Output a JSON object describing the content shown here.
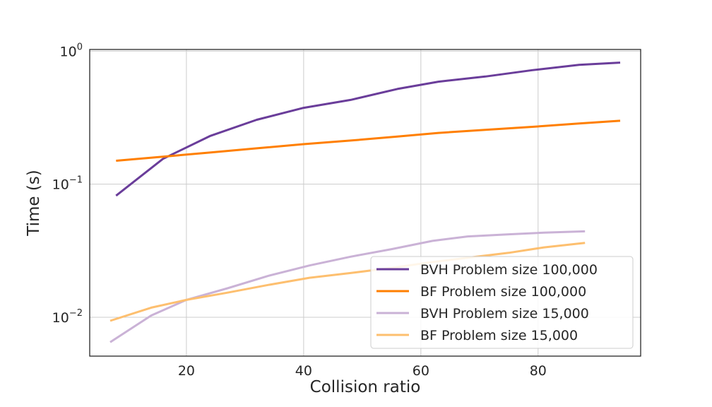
{
  "chart_data": {
    "type": "line",
    "xlabel": "Collision ratio",
    "ylabel": "Time (s)",
    "xlim": [
      3.5,
      97.5
    ],
    "ylim": [
      0.0051,
      1.03
    ],
    "yscale": "log",
    "grid": true,
    "legend_position": "lower-right",
    "x_ticks": [
      20,
      40,
      60,
      80
    ],
    "y_ticks": [
      {
        "value": 1,
        "base": "10",
        "exp": "0"
      },
      {
        "value": 0.1,
        "base": "10",
        "exp": "−1"
      },
      {
        "value": 0.01,
        "base": "10",
        "exp": "−2"
      }
    ],
    "series": [
      {
        "name": "BVH Problem size 100,000",
        "color": "#6a3d9a",
        "x": [
          8,
          16,
          24,
          32,
          40,
          48,
          56,
          63,
          71,
          79,
          87,
          94
        ],
        "y": [
          0.082,
          0.155,
          0.23,
          0.305,
          0.375,
          0.43,
          0.52,
          0.59,
          0.645,
          0.72,
          0.79,
          0.82
        ]
      },
      {
        "name": "BF Problem size 100,000",
        "color": "#ff7f00",
        "x": [
          8,
          16,
          24,
          32,
          40,
          48,
          56,
          63,
          71,
          79,
          87,
          94
        ],
        "y": [
          0.15,
          0.161,
          0.173,
          0.186,
          0.2,
          0.213,
          0.228,
          0.243,
          0.256,
          0.27,
          0.286,
          0.3
        ]
      },
      {
        "name": "BVH Problem size 15,000",
        "color": "#cab2d6",
        "x": [
          7,
          14,
          20,
          27,
          34,
          41,
          48,
          55,
          62,
          68,
          75,
          81,
          88
        ],
        "y": [
          0.0065,
          0.0103,
          0.0135,
          0.0165,
          0.0205,
          0.0245,
          0.0285,
          0.0325,
          0.0375,
          0.0405,
          0.042,
          0.0432,
          0.0442
        ]
      },
      {
        "name": "BF Problem size 15,000",
        "color": "#fdbf6f",
        "x": [
          7,
          14,
          20,
          27,
          34,
          41,
          48,
          55,
          62,
          68,
          75,
          81,
          88
        ],
        "y": [
          0.0094,
          0.0118,
          0.0135,
          0.0153,
          0.0175,
          0.0198,
          0.0215,
          0.0235,
          0.026,
          0.028,
          0.0305,
          0.0335,
          0.0362
        ]
      }
    ]
  }
}
